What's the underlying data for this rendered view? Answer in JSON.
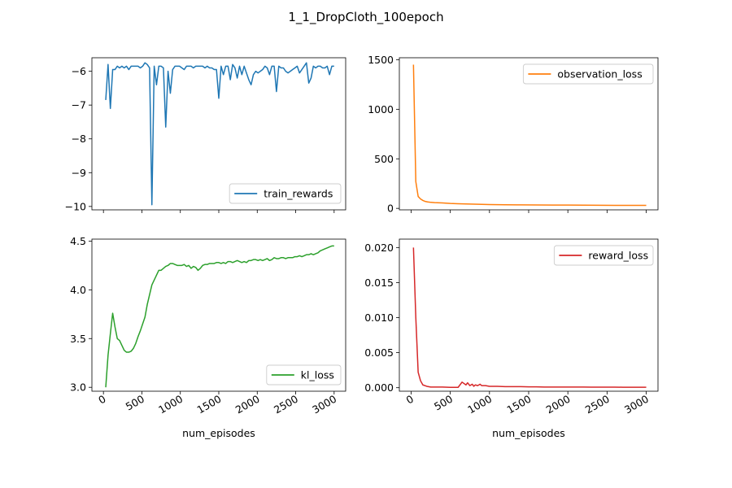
{
  "figure": {
    "title": "1_1_DropCloth_100epoch"
  },
  "colors": {
    "train_rewards": "#1f77b4",
    "observation_loss": "#ff7f0e",
    "kl_loss": "#2ca02c",
    "reward_loss": "#d62728"
  },
  "chart_data": [
    {
      "type": "line",
      "id": "train_rewards",
      "xlabel": "",
      "ylabel": "",
      "xlim": [
        -150,
        3150
      ],
      "ylim": [
        -10.1,
        -5.6
      ],
      "xticks": [
        0,
        500,
        1000,
        1500,
        2000,
        2500,
        3000
      ],
      "yticks": [
        -10,
        -9,
        -8,
        -7,
        -6
      ],
      "yticklabels": [
        "−10",
        "−9",
        "−8",
        "−7",
        "−6"
      ],
      "show_xticklabels": false,
      "legend_loc": "lower right",
      "series": [
        {
          "name": "train_rewards",
          "color": "#1f77b4",
          "x": [
            30,
            60,
            90,
            120,
            150,
            180,
            210,
            240,
            270,
            300,
            330,
            360,
            390,
            420,
            450,
            480,
            510,
            540,
            570,
            600,
            630,
            660,
            690,
            720,
            750,
            780,
            810,
            840,
            870,
            900,
            930,
            960,
            990,
            1020,
            1050,
            1080,
            1110,
            1140,
            1170,
            1200,
            1230,
            1260,
            1290,
            1320,
            1350,
            1380,
            1410,
            1440,
            1470,
            1500,
            1530,
            1560,
            1590,
            1620,
            1650,
            1680,
            1710,
            1740,
            1770,
            1800,
            1830,
            1860,
            1890,
            1920,
            1950,
            1980,
            2010,
            2040,
            2070,
            2100,
            2130,
            2160,
            2190,
            2220,
            2250,
            2280,
            2310,
            2340,
            2370,
            2400,
            2430,
            2460,
            2490,
            2520,
            2550,
            2580,
            2610,
            2640,
            2670,
            2700,
            2730,
            2760,
            2790,
            2820,
            2850,
            2880,
            2910,
            2940,
            2970,
            3000
          ],
          "values": [
            -6.85,
            -5.8,
            -7.1,
            -5.95,
            -5.95,
            -5.85,
            -5.9,
            -5.85,
            -5.9,
            -5.85,
            -5.95,
            -5.85,
            -5.85,
            -5.85,
            -5.85,
            -5.9,
            -5.85,
            -5.75,
            -5.8,
            -5.9,
            -9.95,
            -5.85,
            -6.4,
            -5.85,
            -5.85,
            -5.9,
            -7.65,
            -6.0,
            -6.65,
            -5.95,
            -5.85,
            -5.85,
            -5.85,
            -5.9,
            -5.95,
            -5.85,
            -5.85,
            -5.85,
            -5.9,
            -5.85,
            -5.85,
            -5.85,
            -5.85,
            -5.9,
            -5.85,
            -5.9,
            -5.9,
            -5.95,
            -5.95,
            -6.8,
            -5.85,
            -6.1,
            -5.85,
            -5.85,
            -6.25,
            -5.8,
            -5.9,
            -6.2,
            -5.85,
            -6.1,
            -5.85,
            -6.05,
            -6.25,
            -6.4,
            -6.1,
            -6.0,
            -6.05,
            -6.0,
            -5.95,
            -5.85,
            -5.9,
            -6.1,
            -5.85,
            -5.85,
            -6.6,
            -5.85,
            -5.9,
            -5.9,
            -6.0,
            -6.05,
            -6.0,
            -5.95,
            -5.9,
            -5.85,
            -6.05,
            -5.95,
            -5.85,
            -5.75,
            -6.35,
            -6.2,
            -5.85,
            -5.9,
            -5.85,
            -5.85,
            -5.9,
            -5.9,
            -5.85,
            -6.1,
            -5.85,
            -5.85
          ]
        }
      ]
    },
    {
      "type": "line",
      "id": "observation_loss",
      "xlabel": "",
      "ylabel": "",
      "xlim": [
        -150,
        3150
      ],
      "ylim": [
        -15,
        1520
      ],
      "xticks": [
        0,
        500,
        1000,
        1500,
        2000,
        2500,
        3000
      ],
      "yticks": [
        0,
        500,
        1000,
        1500
      ],
      "yticklabels": [
        "0",
        "500",
        "1000",
        "1500"
      ],
      "show_xticklabels": false,
      "legend_loc": "upper right",
      "series": [
        {
          "name": "observation_loss",
          "color": "#ff7f0e",
          "x": [
            30,
            60,
            90,
            120,
            150,
            180,
            210,
            240,
            270,
            300,
            400,
            500,
            600,
            700,
            800,
            900,
            1000,
            1200,
            1400,
            1600,
            1800,
            2000,
            2200,
            2400,
            2600,
            2800,
            3000
          ],
          "values": [
            1450,
            270,
            120,
            95,
            80,
            70,
            65,
            62,
            60,
            58,
            55,
            50,
            47,
            44,
            42,
            40,
            38,
            36,
            35,
            34,
            33,
            33,
            32,
            31,
            30,
            30,
            30
          ]
        }
      ]
    },
    {
      "type": "line",
      "id": "kl_loss",
      "xlabel": "num_episodes",
      "ylabel": "",
      "xlim": [
        -150,
        3150
      ],
      "ylim": [
        2.96,
        4.52
      ],
      "xticks": [
        0,
        500,
        1000,
        1500,
        2000,
        2500,
        3000
      ],
      "yticks": [
        3.0,
        3.5,
        4.0,
        4.5
      ],
      "yticklabels": [
        "3.0",
        "3.5",
        "4.0",
        "4.5"
      ],
      "show_xticklabels": true,
      "legend_loc": "lower right",
      "series": [
        {
          "name": "kl_loss",
          "color": "#2ca02c",
          "x": [
            30,
            60,
            90,
            120,
            150,
            180,
            210,
            240,
            270,
            300,
            330,
            360,
            390,
            420,
            450,
            480,
            510,
            540,
            570,
            600,
            630,
            660,
            690,
            720,
            750,
            780,
            810,
            840,
            870,
            900,
            930,
            960,
            990,
            1020,
            1050,
            1080,
            1110,
            1140,
            1170,
            1200,
            1230,
            1260,
            1290,
            1320,
            1350,
            1380,
            1410,
            1440,
            1470,
            1500,
            1530,
            1560,
            1590,
            1620,
            1650,
            1680,
            1710,
            1740,
            1770,
            1800,
            1830,
            1860,
            1890,
            1920,
            1950,
            1980,
            2010,
            2040,
            2070,
            2100,
            2130,
            2160,
            2190,
            2220,
            2250,
            2280,
            2310,
            2340,
            2370,
            2400,
            2430,
            2460,
            2490,
            2520,
            2550,
            2580,
            2610,
            2640,
            2670,
            2700,
            2730,
            2760,
            2790,
            2820,
            2850,
            2880,
            2910,
            2940,
            2970,
            3000
          ],
          "values": [
            3.0,
            3.33,
            3.55,
            3.76,
            3.62,
            3.5,
            3.48,
            3.43,
            3.38,
            3.36,
            3.36,
            3.37,
            3.4,
            3.45,
            3.52,
            3.58,
            3.65,
            3.72,
            3.85,
            3.95,
            4.05,
            4.1,
            4.15,
            4.2,
            4.2,
            4.22,
            4.24,
            4.25,
            4.27,
            4.27,
            4.26,
            4.25,
            4.25,
            4.25,
            4.26,
            4.24,
            4.25,
            4.22,
            4.24,
            4.23,
            4.2,
            4.22,
            4.25,
            4.26,
            4.26,
            4.27,
            4.27,
            4.27,
            4.28,
            4.28,
            4.27,
            4.28,
            4.27,
            4.29,
            4.29,
            4.28,
            4.29,
            4.3,
            4.29,
            4.28,
            4.29,
            4.28,
            4.3,
            4.3,
            4.31,
            4.31,
            4.3,
            4.31,
            4.3,
            4.31,
            4.32,
            4.3,
            4.31,
            4.33,
            4.32,
            4.32,
            4.33,
            4.33,
            4.32,
            4.33,
            4.33,
            4.33,
            4.34,
            4.34,
            4.35,
            4.34,
            4.35,
            4.36,
            4.36,
            4.37,
            4.36,
            4.37,
            4.38,
            4.4,
            4.41,
            4.42,
            4.43,
            4.44,
            4.45,
            4.45
          ]
        }
      ]
    },
    {
      "type": "line",
      "id": "reward_loss",
      "xlabel": "num_episodes",
      "ylabel": "",
      "xlim": [
        -150,
        3150
      ],
      "ylim": [
        -0.0005,
        0.0212
      ],
      "xticks": [
        0,
        500,
        1000,
        1500,
        2000,
        2500,
        3000
      ],
      "yticks": [
        0.0,
        0.005,
        0.01,
        0.015,
        0.02
      ],
      "yticklabels": [
        "0.000",
        "0.005",
        "0.010",
        "0.015",
        "0.020"
      ],
      "show_xticklabels": true,
      "legend_loc": "upper right",
      "series": [
        {
          "name": "reward_loss",
          "color": "#d62728",
          "x": [
            30,
            60,
            90,
            120,
            150,
            200,
            250,
            300,
            400,
            500,
            600,
            650,
            700,
            720,
            750,
            780,
            800,
            820,
            850,
            880,
            900,
            950,
            1000,
            1100,
            1200,
            1300,
            1400,
            1500,
            1600,
            1700,
            1800,
            1900,
            2000,
            2100,
            2200,
            2300,
            2400,
            2500,
            2600,
            2700,
            2800,
            2900,
            3000
          ],
          "values": [
            0.02,
            0.01,
            0.0022,
            0.001,
            0.0004,
            0.0002,
            0.0001,
            0.0001,
            0.0001,
            5e-05,
            5e-05,
            0.0008,
            0.0004,
            0.0007,
            0.0003,
            0.0005,
            0.0002,
            0.0004,
            0.0003,
            0.0005,
            0.0003,
            0.0003,
            0.0002,
            0.0002,
            0.00015,
            0.00015,
            0.00015,
            0.00012,
            0.00012,
            0.0001,
            0.0001,
            0.0001,
            0.0001,
            0.0001,
            0.0001,
            8e-05,
            8e-05,
            8e-05,
            8e-05,
            7e-05,
            7e-05,
            7e-05,
            7e-05
          ]
        }
      ]
    }
  ]
}
